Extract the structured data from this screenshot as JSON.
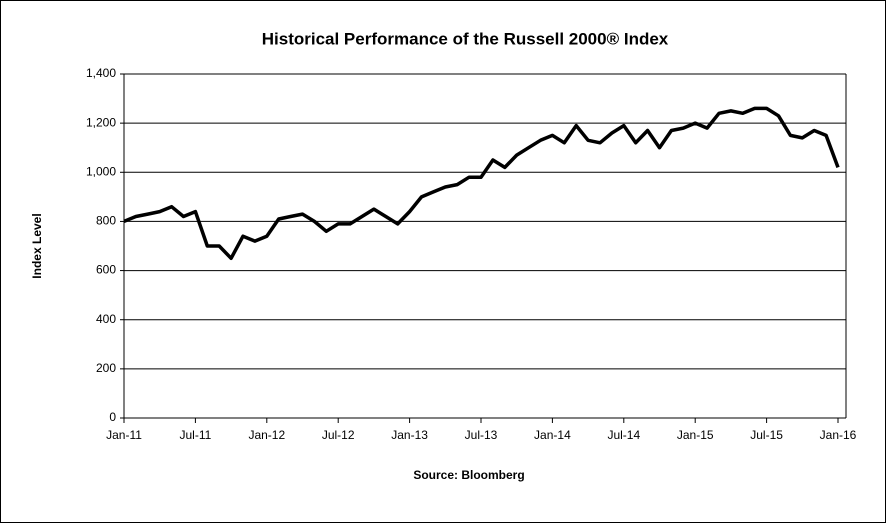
{
  "chart_data": {
    "type": "line",
    "title": "Historical Performance of the Russell 2000® Index",
    "ylabel": "Index Level",
    "xlabel": "Source: Bloomberg",
    "categories": [
      "Jan-11",
      null,
      null,
      null,
      null,
      null,
      "Jul-11",
      null,
      null,
      null,
      null,
      null,
      "Jan-12",
      null,
      null,
      null,
      null,
      null,
      "Jul-12",
      null,
      null,
      null,
      null,
      null,
      "Jan-13",
      null,
      null,
      null,
      null,
      null,
      "Jul-13",
      null,
      null,
      null,
      null,
      null,
      "Jan-14",
      null,
      null,
      null,
      null,
      null,
      "Jul-14",
      null,
      null,
      null,
      null,
      null,
      "Jan-15",
      null,
      null,
      null,
      null,
      null,
      "Jul-15",
      null,
      null,
      null,
      null,
      null,
      "Jan-16"
    ],
    "series": [
      {
        "name": "Russell 2000",
        "color": "#000000",
        "values": [
          800,
          820,
          830,
          840,
          860,
          820,
          840,
          700,
          700,
          650,
          740,
          720,
          740,
          810,
          820,
          830,
          800,
          760,
          790,
          790,
          820,
          850,
          820,
          790,
          840,
          900,
          920,
          940,
          950,
          980,
          980,
          1050,
          1020,
          1070,
          1100,
          1130,
          1150,
          1120,
          1190,
          1130,
          1120,
          1160,
          1190,
          1120,
          1170,
          1100,
          1170,
          1180,
          1200,
          1180,
          1240,
          1250,
          1240,
          1260,
          1260,
          1230,
          1150,
          1140,
          1170,
          1150,
          1020
        ]
      }
    ],
    "ylim": [
      0,
      1400
    ],
    "yticks": [
      0,
      200,
      400,
      600,
      800,
      {
        "value": 1000,
        "label": "1,000"
      },
      {
        "value": 1200,
        "label": "1,200"
      },
      {
        "value": 1400,
        "label": "1,400"
      }
    ],
    "grid": true
  }
}
